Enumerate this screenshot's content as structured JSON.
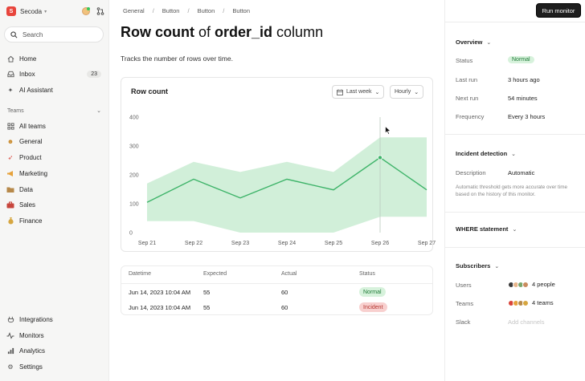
{
  "app": {
    "brand": "Secoda",
    "search_placeholder": "Search"
  },
  "sidebar": {
    "top_items": [
      {
        "label": "Home",
        "icon": "home-icon"
      },
      {
        "label": "Inbox",
        "icon": "inbox-icon",
        "badge": "23"
      },
      {
        "label": "AI Assistant",
        "icon": "sparkle-icon"
      }
    ],
    "teams_heading": "Teams",
    "teams": [
      {
        "label": "All teams",
        "icon": "grid-icon"
      },
      {
        "label": "General",
        "icon": "general-emoji-icon"
      },
      {
        "label": "Product",
        "icon": "rocket-icon"
      },
      {
        "label": "Marketing",
        "icon": "megaphone-icon"
      },
      {
        "label": "Data",
        "icon": "folder-icon"
      },
      {
        "label": "Sales",
        "icon": "briefcase-icon"
      },
      {
        "label": "Finance",
        "icon": "money-bag-icon"
      }
    ],
    "bottom_items": [
      {
        "label": "Integrations",
        "icon": "integrations-icon"
      },
      {
        "label": "Monitors",
        "icon": "monitor-icon"
      },
      {
        "label": "Analytics",
        "icon": "analytics-icon"
      },
      {
        "label": "Settings",
        "icon": "gear-icon"
      }
    ]
  },
  "breadcrumb": [
    "General",
    "Button",
    "Button",
    "Button"
  ],
  "page": {
    "title_bold_1": "Row count",
    "title_mid": " of ",
    "title_bold_2": "order_id",
    "title_end": " column",
    "description": "Tracks the number of rows over time."
  },
  "chart_card": {
    "title": "Row count",
    "range_dropdown": "Last week",
    "granularity_dropdown": "Hourly"
  },
  "chart_data": {
    "type": "line",
    "x": [
      "Sep 21",
      "Sep 22",
      "Sep 23",
      "Sep 24",
      "Sep 25",
      "Sep 26",
      "Sep 27"
    ],
    "series": [
      {
        "values": [
          105,
          185,
          120,
          185,
          148,
          260,
          148
        ]
      }
    ],
    "expected_band": {
      "lower": [
        40,
        40,
        0,
        0,
        0,
        55,
        55
      ],
      "upper": [
        170,
        245,
        210,
        245,
        210,
        330,
        330
      ]
    },
    "ylim": [
      0,
      400
    ],
    "yticks": [
      0,
      100,
      200,
      300,
      400
    ],
    "highlight_x": "Sep 26",
    "grid": false,
    "colors": {
      "line": "#3fb46a",
      "band": "#c9ecd2"
    }
  },
  "table": {
    "headers": [
      "Datetime",
      "Expected",
      "Actual",
      "Status"
    ],
    "rows": [
      {
        "datetime": "Jun 14, 2023 10:04 AM",
        "expected": "55",
        "actual": "60",
        "status": "Normal"
      },
      {
        "datetime": "Jun 14, 2023 10:04 AM",
        "expected": "55",
        "actual": "60",
        "status": "Incident"
      }
    ]
  },
  "right_panel": {
    "run_button": "Run monitor",
    "overview": {
      "heading": "Overview",
      "status_label": "Status",
      "status_value": "Normal",
      "last_run_label": "Last run",
      "last_run_value": "3 hours ago",
      "next_run_label": "Next run",
      "next_run_value": "54 minutes",
      "frequency_label": "Frequency",
      "frequency_value": "Every 3 hours"
    },
    "incident": {
      "heading": "Incident detection",
      "description_label": "Description",
      "description_value": "Automatic",
      "note": "Automatic threshold gets more accurate over time based on the history of this monitor."
    },
    "where": {
      "heading": "WHERE statement"
    },
    "subscribers": {
      "heading": "Subscribers",
      "users_label": "Users",
      "users_value": "4 people",
      "teams_label": "Teams",
      "teams_value": "4 teams",
      "slack_label": "Slack",
      "slack_value": "Add channels"
    }
  }
}
